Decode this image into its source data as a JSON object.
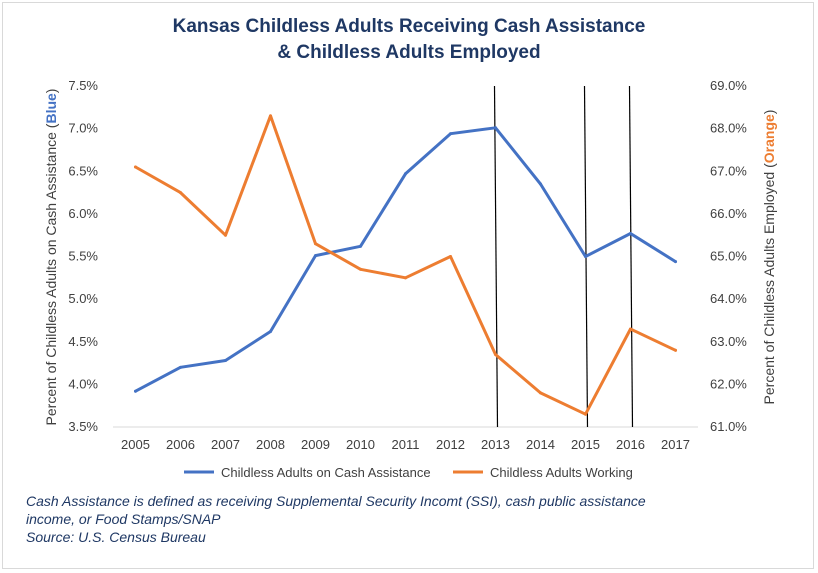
{
  "title_line1": "Kansas Childless Adults Receiving Cash Assistance",
  "title_line2": "& Childless Adults Employed",
  "y_left_label_main": "Percent of Childless Adults on Cash Assistance (",
  "y_left_label_color": "Blue",
  "y_left_label_end": ")",
  "y_right_label_main": "Percent of Childless Adults Employed (",
  "y_right_label_color": "Orange",
  "y_right_label_end": ")",
  "notes": [
    "Cash Assistance is defined as receiving Supplemental Security Incomt (SSI), cash public assistance",
    "income, or Food Stamps/SNAP",
    "Source: U.S. Census Bureau"
  ],
  "colors": {
    "blue": "#4472c4",
    "orange": "#ed7d31",
    "title": "#1f3864",
    "text": "#404040",
    "grid": "#d9d9d9"
  },
  "chart_data": {
    "type": "line",
    "x": [
      "2005",
      "2006",
      "2007",
      "2008",
      "2009",
      "2010",
      "2011",
      "2012",
      "2013",
      "2014",
      "2015",
      "2016",
      "2017"
    ],
    "series": [
      {
        "name": "Childless Adults on Cash Assistance",
        "axis": "left",
        "color": "#4472c4",
        "values": [
          3.92,
          4.2,
          4.28,
          4.62,
          5.51,
          5.62,
          6.47,
          6.94,
          7.01,
          6.35,
          5.5,
          5.77,
          5.44
        ]
      },
      {
        "name": "Childless Adults Working",
        "axis": "right",
        "color": "#ed7d31",
        "values": [
          67.1,
          66.5,
          65.5,
          68.3,
          65.3,
          64.7,
          64.5,
          65.0,
          62.7,
          61.8,
          61.3,
          63.3,
          62.8
        ]
      }
    ],
    "y_left": {
      "min": 3.5,
      "max": 7.5,
      "step": 0.5,
      "tick_labels": [
        "3.5%",
        "4.0%",
        "4.5%",
        "5.0%",
        "5.5%",
        "6.0%",
        "6.5%",
        "7.0%",
        "7.5%"
      ]
    },
    "y_right": {
      "min": 61.0,
      "max": 69.0,
      "step": 1.0,
      "tick_labels": [
        "61.0%",
        "62.0%",
        "63.0%",
        "64.0%",
        "65.0%",
        "66.0%",
        "67.0%",
        "68.0%",
        "69.0%"
      ]
    },
    "vertical_markers": [
      "2013",
      "2015",
      "2016"
    ],
    "grid": false,
    "legend_position": "bottom"
  }
}
